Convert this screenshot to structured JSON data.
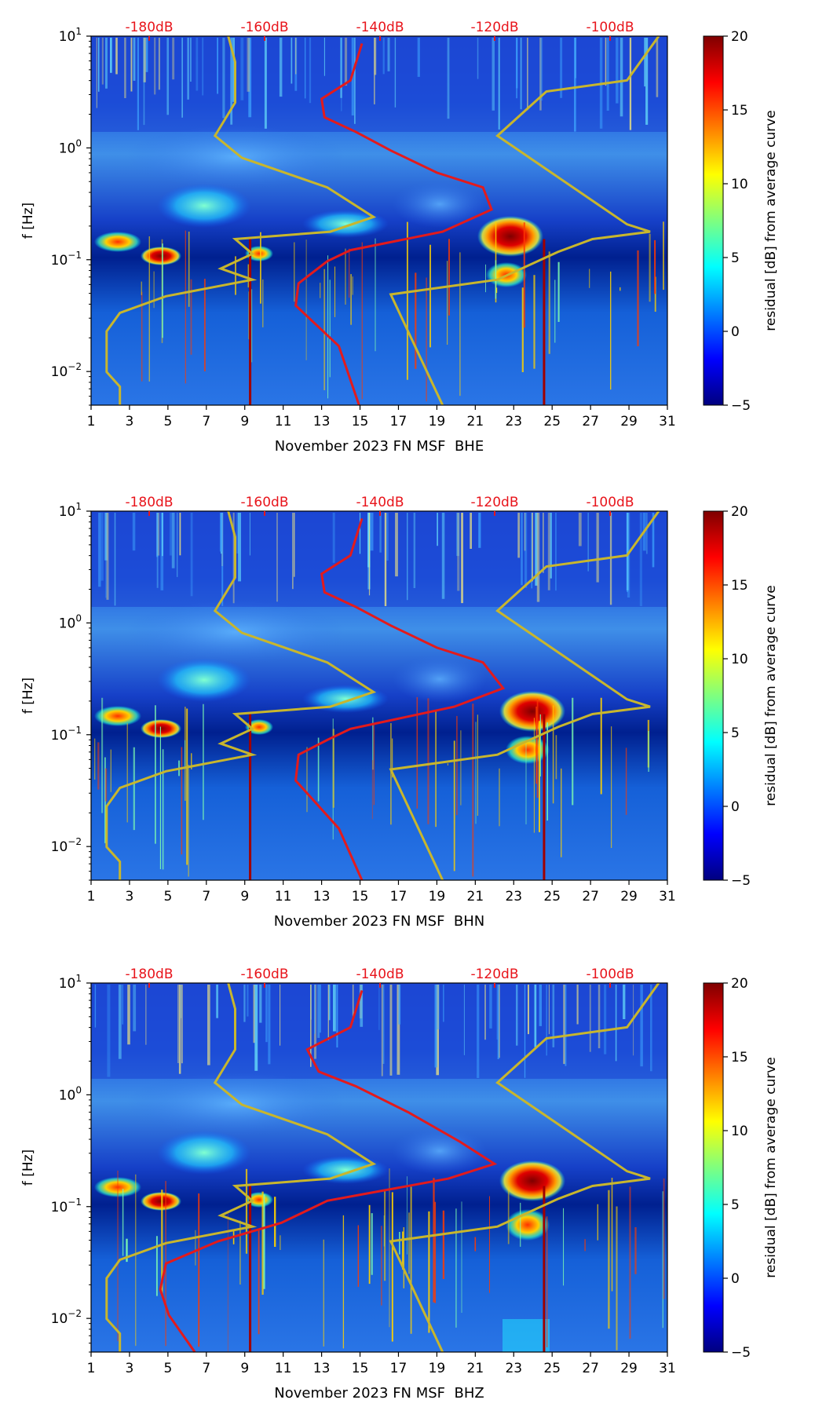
{
  "colors": {
    "db_label": "#e8141b",
    "noise_model": "#c8b62d",
    "median_curve": "#e31a1c",
    "axis": "#000000",
    "jet": [
      "#00007f",
      "#0000ff",
      "#007fff",
      "#00ffff",
      "#7fff7f",
      "#ffff00",
      "#ff7f00",
      "#ff0000",
      "#7f0000"
    ]
  },
  "chart_data": [
    {
      "type": "heatmap",
      "title": "",
      "xlabel": "November 2023 FN MSF  BHE",
      "ylabel": "f [Hz]",
      "xlim": [
        1,
        31
      ],
      "x_ticks": [
        "1",
        "3",
        "5",
        "7",
        "9",
        "11",
        "13",
        "15",
        "17",
        "19",
        "21",
        "23",
        "25",
        "27",
        "29",
        "31"
      ],
      "ylim_hz": [
        0.005,
        10
      ],
      "y_ticks": [
        {
          "base": "10",
          "exp": "1"
        },
        {
          "base": "10",
          "exp": "0"
        },
        {
          "base": "10",
          "exp": "−1"
        },
        {
          "base": "10",
          "exp": "−2"
        }
      ],
      "top_db_labels": [
        "-180dB",
        "-160dB",
        "-140dB",
        "-120dB",
        "-100dB"
      ],
      "colorbar": {
        "label": "residual [dB] from average curve",
        "range": [
          -5,
          20
        ],
        "ticks": [
          "20",
          "15",
          "10",
          "5",
          "0",
          "−5"
        ]
      },
      "series": [
        {
          "name": "noise model bounds",
          "color": "#c8b62d"
        },
        {
          "name": "median PSD (dB axis on top)",
          "color": "#e31a1c"
        }
      ]
    },
    {
      "type": "heatmap",
      "title": "",
      "xlabel": "November 2023 FN MSF  BHN",
      "ylabel": "f [Hz]",
      "xlim": [
        1,
        31
      ],
      "x_ticks": [
        "1",
        "3",
        "5",
        "7",
        "9",
        "11",
        "13",
        "15",
        "17",
        "19",
        "21",
        "23",
        "25",
        "27",
        "29",
        "31"
      ],
      "ylim_hz": [
        0.005,
        10
      ],
      "y_ticks": [
        {
          "base": "10",
          "exp": "1"
        },
        {
          "base": "10",
          "exp": "0"
        },
        {
          "base": "10",
          "exp": "−1"
        },
        {
          "base": "10",
          "exp": "−2"
        }
      ],
      "top_db_labels": [
        "-180dB",
        "-160dB",
        "-140dB",
        "-120dB",
        "-100dB"
      ],
      "colorbar": {
        "label": "residual [dB] from average curve",
        "range": [
          -5,
          20
        ],
        "ticks": [
          "20",
          "15",
          "10",
          "5",
          "0",
          "−5"
        ]
      },
      "series": [
        {
          "name": "noise model bounds",
          "color": "#c8b62d"
        },
        {
          "name": "median PSD (dB axis on top)",
          "color": "#e31a1c"
        }
      ]
    },
    {
      "type": "heatmap",
      "title": "",
      "xlabel": "November 2023 FN MSF  BHZ",
      "ylabel": "f [Hz]",
      "xlim": [
        1,
        31
      ],
      "x_ticks": [
        "1",
        "3",
        "5",
        "7",
        "9",
        "11",
        "13",
        "15",
        "17",
        "19",
        "21",
        "23",
        "25",
        "27",
        "29",
        "31"
      ],
      "ylim_hz": [
        0.005,
        10
      ],
      "y_ticks": [
        {
          "base": "10",
          "exp": "1"
        },
        {
          "base": "10",
          "exp": "0"
        },
        {
          "base": "10",
          "exp": "−1"
        },
        {
          "base": "10",
          "exp": "−2"
        }
      ],
      "top_db_labels": [
        "-180dB",
        "-160dB",
        "-140dB",
        "-120dB",
        "-100dB"
      ],
      "colorbar": {
        "label": "residual [dB] from average curve",
        "range": [
          -5,
          20
        ],
        "ticks": [
          "20",
          "15",
          "10",
          "5",
          "0",
          "−5"
        ]
      },
      "series": [
        {
          "name": "noise model bounds",
          "color": "#c8b62d"
        },
        {
          "name": "median PSD (dB axis on top)",
          "color": "#e31a1c"
        }
      ]
    }
  ]
}
